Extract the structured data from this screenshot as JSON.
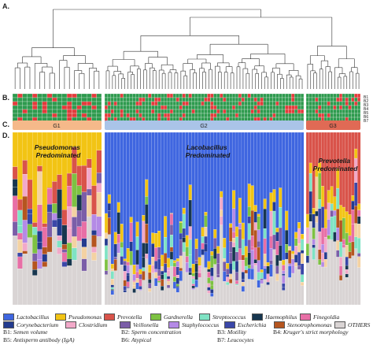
{
  "panels": [
    "A.",
    "B.",
    "C.",
    "D."
  ],
  "b_rows": [
    "B1",
    "B2",
    "B3",
    "B4",
    "B5",
    "B6",
    "B7"
  ],
  "groups": [
    {
      "label": "G1",
      "color": "#f5b98a",
      "n": 18,
      "predominant": "Pseudomonas\nPredominated"
    },
    {
      "label": "G2",
      "color": "#aac4e8",
      "n": 64,
      "predominant": "Lacobacillus\nPredominated"
    },
    {
      "label": "G3",
      "color": "#e06a55",
      "n": 18,
      "predominant": "Prevotella\nPredominated"
    }
  ],
  "taxa": [
    {
      "name": "Lactobacillus",
      "color": "#3f66e0"
    },
    {
      "name": "Pseudomonas",
      "color": "#f2c414"
    },
    {
      "name": "Prevotella",
      "color": "#d9534a"
    },
    {
      "name": "Gardnerella",
      "color": "#7dc242"
    },
    {
      "name": "Streptococcus",
      "color": "#7fe3c4"
    },
    {
      "name": "Haemophilus",
      "color": "#17364f"
    },
    {
      "name": "Finegoldia",
      "color": "#e86fa6"
    },
    {
      "name": "Rhodanobacter",
      "color": "#f4d2a2"
    },
    {
      "name": "Corynebacterium",
      "color": "#233b8f"
    },
    {
      "name": "Clostridium",
      "color": "#f2a9c9"
    },
    {
      "name": "Veillonella",
      "color": "#7b5ea8"
    },
    {
      "name": "Staphylococcus",
      "color": "#b48ae6"
    },
    {
      "name": "Escherichia",
      "color": "#3a47a8"
    },
    {
      "name": "Stenotrophomonas",
      "color": "#b5551f"
    },
    {
      "name": "OTHERS",
      "color": "#d9d4d4"
    }
  ],
  "b_legend": [
    {
      "code": "B1:",
      "label": "Semen volume"
    },
    {
      "code": "B2:",
      "label": "Sperm concentration"
    },
    {
      "code": "B3:",
      "label": "Motility"
    },
    {
      "code": "B4:",
      "label": "Kruger's strict morphology"
    },
    {
      "code": "B5:",
      "label": "Antisperm antibody (IgA)"
    },
    {
      "code": "B6:",
      "label": "Atypical"
    },
    {
      "code": "B7:",
      "label": "Leucocytes"
    }
  ],
  "colors": {
    "heat_normal": "#2e9a4e",
    "heat_abnormal": "#e23b3b",
    "grid": "#ffffff"
  }
}
